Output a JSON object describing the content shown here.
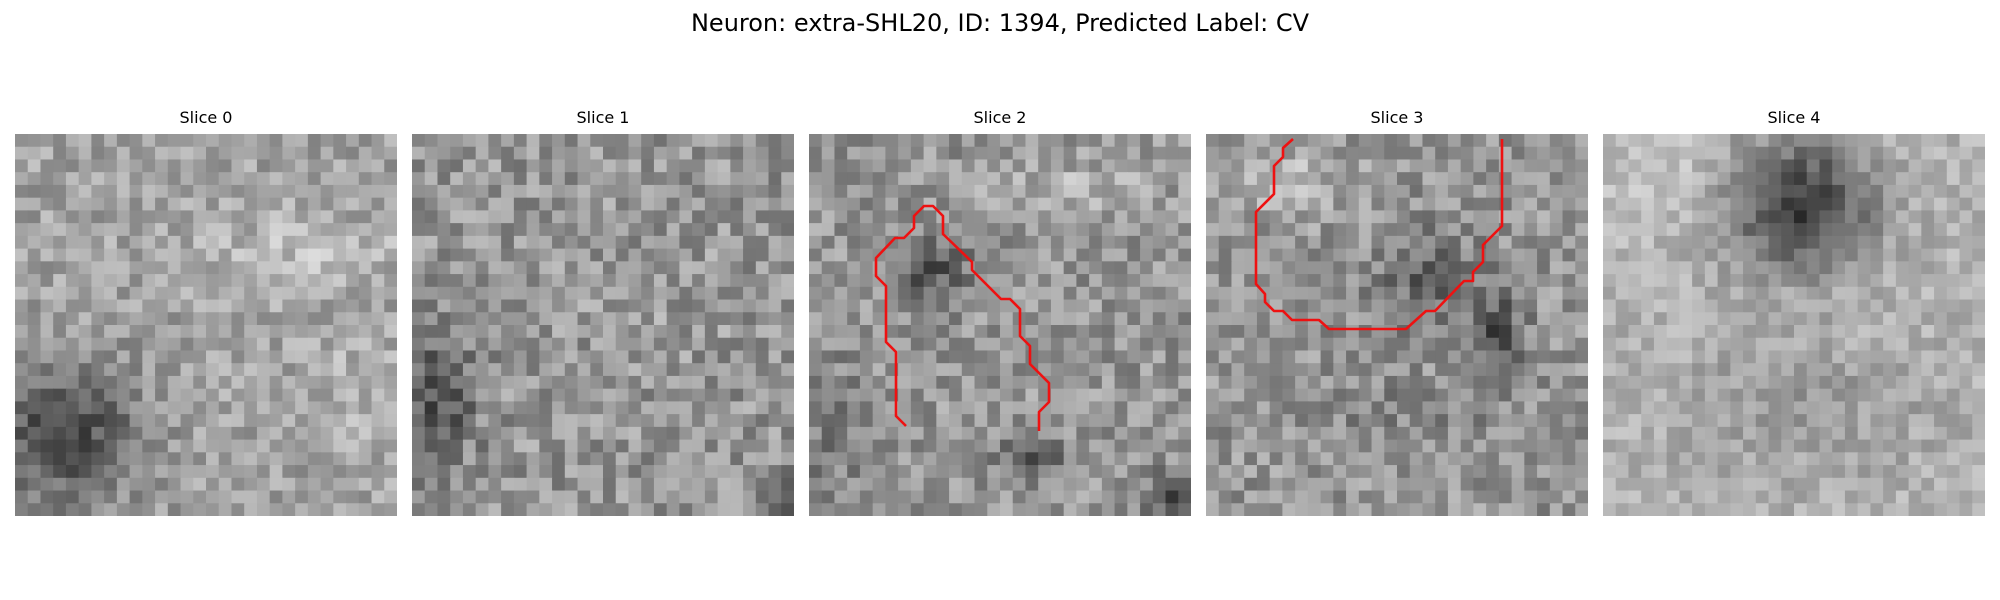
{
  "figure": {
    "title": "Neuron: extra-SHL20, ID: 1394, Predicted Label: CV"
  },
  "colors": {
    "background": "#ffffff",
    "contour": "#ee1111"
  },
  "panels": [
    {
      "title": "Slice 0"
    },
    {
      "title": "Slice 1"
    },
    {
      "title": "Slice 2"
    },
    {
      "title": "Slice 3"
    },
    {
      "title": "Slice 4"
    }
  ]
}
